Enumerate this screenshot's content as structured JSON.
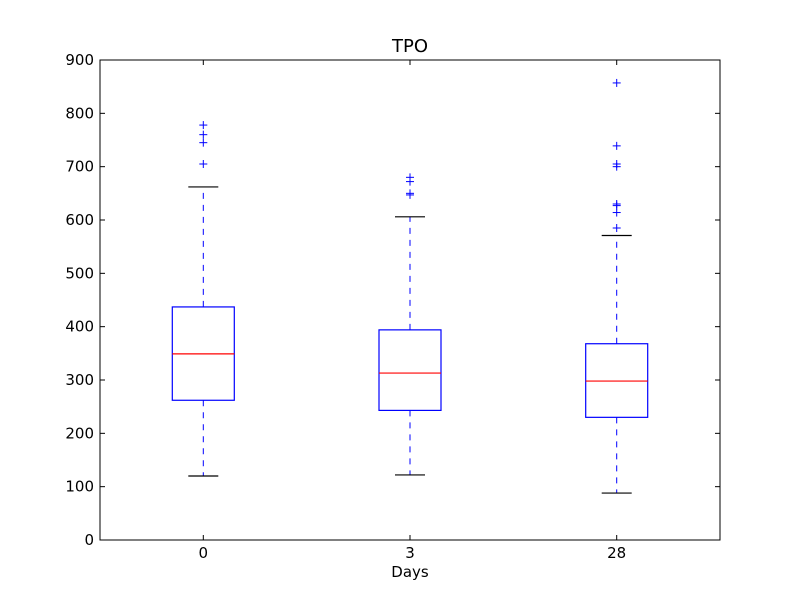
{
  "chart_data": {
    "type": "box",
    "title": "TPO",
    "xlabel": "Days",
    "ylabel": "",
    "ylim": [
      0,
      900
    ],
    "yticks": [
      0,
      100,
      200,
      300,
      400,
      500,
      600,
      700,
      800,
      900
    ],
    "grid": false,
    "categories": [
      "0",
      "3",
      "28"
    ],
    "boxes": [
      {
        "category": "0",
        "whisker_low": 120,
        "q1": 262,
        "median": 349,
        "q3": 437,
        "whisker_high": 662,
        "outliers": [
          705,
          745,
          760,
          778
        ]
      },
      {
        "category": "3",
        "whisker_low": 122,
        "q1": 243,
        "median": 313,
        "q3": 394,
        "whisker_high": 606,
        "outliers": [
          647,
          650,
          672,
          680
        ]
      },
      {
        "category": "28",
        "whisker_low": 88,
        "q1": 230,
        "median": 298,
        "q3": 368,
        "whisker_high": 571,
        "outliers": [
          585,
          614,
          627,
          630,
          700,
          705,
          739,
          857
        ]
      }
    ],
    "colors": {
      "box": "#0000ff",
      "median": "#ff0000",
      "whisker": "#0000ff",
      "cap": "#000000",
      "outlier": "#0000ff",
      "axes": "#000000"
    }
  }
}
